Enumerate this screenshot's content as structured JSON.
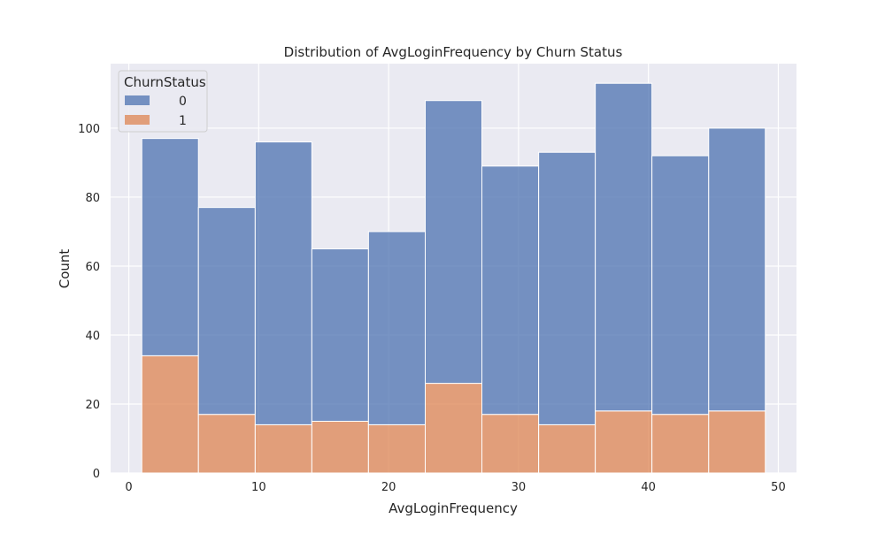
{
  "chart_data": {
    "type": "bar",
    "stacked": true,
    "title": "Distribution of AvgLoginFrequency by Churn Status",
    "xlabel": "AvgLoginFrequency",
    "ylabel": "Count",
    "xlim": [
      -1.4,
      51.4
    ],
    "ylim": [
      0,
      118.7
    ],
    "xticks": [
      0,
      10,
      20,
      30,
      40,
      50
    ],
    "yticks": [
      0,
      20,
      40,
      60,
      80,
      100
    ],
    "bin_edges": [
      1,
      5.36,
      9.73,
      14.09,
      18.45,
      22.82,
      27.18,
      31.55,
      35.91,
      40.27,
      44.64,
      49
    ],
    "series": [
      {
        "name": "0",
        "color": "#4c72b0",
        "values": [
          63,
          60,
          82,
          50,
          56,
          82,
          72,
          79,
          95,
          75,
          82
        ]
      },
      {
        "name": "1",
        "color": "#dd8452",
        "values": [
          34,
          17,
          14,
          15,
          14,
          26,
          17,
          14,
          18,
          17,
          18
        ]
      }
    ],
    "legend": {
      "title": "ChurnStatus",
      "position": "top-left"
    },
    "grid": true,
    "style": {
      "plot_bg": "#eaeaf2",
      "grid_color": "#ffffff"
    }
  }
}
